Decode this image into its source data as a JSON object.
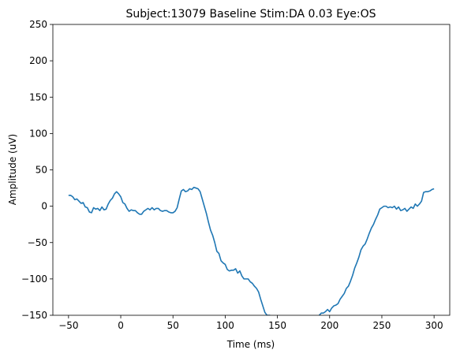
{
  "chart_data": {
    "type": "line",
    "title": "Subject:13079 Baseline Stim:DA 0.03 Eye:OS",
    "xlabel": "Time (ms)",
    "ylabel": "Amplitude (uV)",
    "xlim": [
      -65,
      315
    ],
    "ylim": [
      -150,
      250
    ],
    "xticks": [
      -50,
      0,
      50,
      100,
      150,
      200,
      250,
      300
    ],
    "yticks": [
      -150,
      -100,
      -50,
      0,
      50,
      100,
      150,
      200,
      250
    ],
    "xtick_labels": [
      "−50",
      "0",
      "50",
      "100",
      "150",
      "200",
      "250",
      "300"
    ],
    "ytick_labels": [
      "−150",
      "−100",
      "−50",
      "0",
      "50",
      "100",
      "150",
      "200",
      "250"
    ],
    "grid": false,
    "legend": "none",
    "series_color": "#1f77b4",
    "series": [
      {
        "x": [
          -50,
          -48,
          -46,
          -44,
          -42,
          -40,
          -38,
          -36,
          -34,
          -32,
          -30,
          -28,
          -26,
          -24,
          -22,
          -20,
          -18,
          -16,
          -14,
          -12,
          -10,
          -8,
          -6,
          -4,
          -2,
          0,
          2,
          4,
          6,
          8,
          10,
          12,
          14,
          16,
          18,
          20,
          22,
          24,
          26,
          28,
          30,
          32,
          34,
          36,
          38,
          40,
          42,
          44,
          46,
          48,
          50,
          52,
          54,
          56,
          58,
          60,
          62,
          64,
          66,
          68,
          70,
          72,
          74,
          76,
          78,
          80,
          82,
          84,
          86,
          88,
          90,
          92,
          94,
          96,
          98,
          100,
          102,
          104,
          106,
          108,
          110,
          112,
          114,
          116,
          118,
          120,
          122,
          124,
          126,
          128,
          130,
          132,
          134,
          136,
          138,
          140,
          142,
          143,
          190,
          192,
          194,
          196,
          198,
          200,
          202,
          204,
          206,
          208,
          210,
          212,
          214,
          216,
          218,
          220,
          222,
          224,
          226,
          228,
          230,
          232,
          234,
          236,
          238,
          240,
          242,
          244,
          246,
          248,
          250,
          252,
          254,
          256,
          258,
          260,
          262,
          264,
          266,
          268,
          270,
          272,
          274,
          276,
          278,
          280,
          282,
          284,
          286,
          288,
          290,
          292,
          294,
          296,
          298,
          300
        ],
        "y": [
          15,
          15,
          13,
          9,
          10,
          7,
          4,
          5,
          -1,
          -2,
          -8,
          -9,
          -2,
          -4,
          -3,
          -6,
          -1,
          -5,
          -4,
          3,
          8,
          11,
          17,
          20,
          17,
          13,
          5,
          3,
          -3,
          -7,
          -5,
          -6,
          -6,
          -9,
          -11,
          -11,
          -7,
          -5,
          -3,
          -5,
          -2,
          -5,
          -3,
          -3,
          -6,
          -7,
          -6,
          -6,
          -8,
          -9,
          -9,
          -7,
          -2,
          10,
          21,
          23,
          20,
          21,
          24,
          23,
          26,
          25,
          24,
          20,
          10,
          0,
          -10,
          -22,
          -33,
          -40,
          -50,
          -62,
          -65,
          -75,
          -78,
          -80,
          -87,
          -89,
          -88,
          -88,
          -86,
          -92,
          -89,
          -96,
          -100,
          -100,
          -100,
          -104,
          -106,
          -110,
          -113,
          -118,
          -128,
          -137,
          -146,
          -150,
          -150,
          -150,
          -150,
          -147,
          -147,
          -145,
          -142,
          -145,
          -140,
          -137,
          -136,
          -134,
          -128,
          -124,
          -120,
          -113,
          -110,
          -103,
          -95,
          -85,
          -78,
          -70,
          -60,
          -55,
          -52,
          -45,
          -37,
          -30,
          -25,
          -18,
          -12,
          -4,
          -2,
          0,
          0,
          -2,
          -1,
          -2,
          0,
          -4,
          -1,
          -6,
          -5,
          -3,
          -7,
          -4,
          -1,
          -3,
          3,
          0,
          3,
          7,
          19,
          20,
          20,
          21,
          23,
          24
        ]
      }
    ]
  }
}
